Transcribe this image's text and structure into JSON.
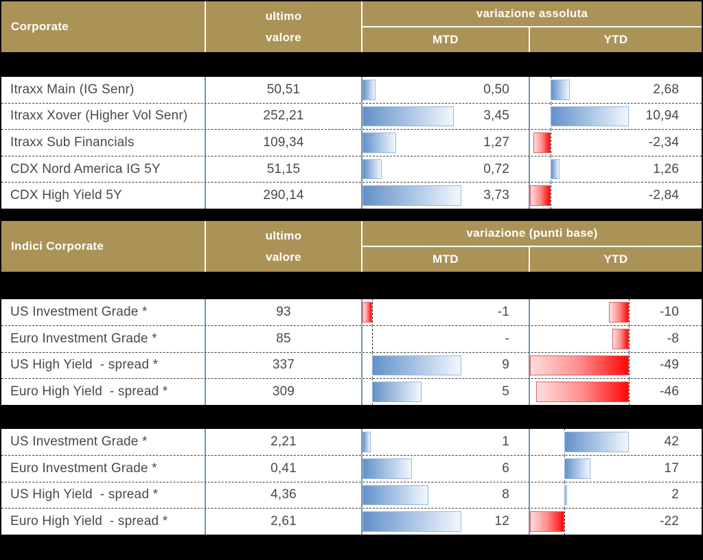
{
  "colors": {
    "background": "#000000",
    "header_bg": "#ab9357",
    "header_text": "#ffffff",
    "row_bg": "#ffffff",
    "row_text": "#484848",
    "column_divider": "#7096b2",
    "positive_bar_dark": "#6391c9",
    "positive_bar_light": "#f1f6fc",
    "negative_bar_dark": "#ff0707",
    "negative_bar_light": "#ffdede"
  },
  "chart_data": [
    {
      "type": "table",
      "title": "Corporate",
      "columns": {
        "value_line1": "ultimo",
        "value_line2": "valore",
        "variation": "variazione assoluta",
        "mtd": "MTD",
        "ytd": "YTD"
      },
      "rows": [
        {
          "label": "Itraxx Main (IG Senr)",
          "value": 50.51,
          "value_label": "50,51",
          "mtd": 0.5,
          "mtd_label": "0,50",
          "ytd": 2.68,
          "ytd_label": "2,68"
        },
        {
          "label": "Itraxx Xover (Higher Vol Senr)",
          "value": 252.21,
          "value_label": "252,21",
          "mtd": 3.45,
          "mtd_label": "3,45",
          "ytd": 10.94,
          "ytd_label": "10,94"
        },
        {
          "label": "Itraxx Sub Financials",
          "value": 109.34,
          "value_label": "109,34",
          "mtd": 1.27,
          "mtd_label": "1,27",
          "ytd": -2.34,
          "ytd_label": "-2,34"
        },
        {
          "label": "CDX Nord America IG 5Y",
          "value": 51.15,
          "value_label": "51,15",
          "mtd": 0.72,
          "mtd_label": "0,72",
          "ytd": 1.26,
          "ytd_label": "1,26"
        },
        {
          "label": "CDX High Yield 5Y",
          "value": 290.14,
          "value_label": "290,14",
          "mtd": 3.73,
          "mtd_label": "3,73",
          "ytd": -2.84,
          "ytd_label": "-2,84"
        }
      ]
    },
    {
      "type": "table",
      "title": "Indici Corporate",
      "columns": {
        "value_line1": "ultimo",
        "value_line2": "valore",
        "variation": "variazione (punti base)",
        "mtd": "MTD",
        "ytd": "YTD"
      },
      "rows": [
        {
          "label": "US Investment Grade *",
          "value": 93,
          "value_label": "93",
          "mtd": -1,
          "mtd_label": "-1",
          "ytd": -10,
          "ytd_label": "-10"
        },
        {
          "label": "Euro Investment Grade *",
          "value": 85,
          "value_label": "85",
          "mtd": null,
          "mtd_label": "-",
          "ytd": -8,
          "ytd_label": "-8"
        },
        {
          "label": "US High Yield  - spread *",
          "value": 337,
          "value_label": "337",
          "mtd": 9,
          "mtd_label": "9",
          "ytd": -49,
          "ytd_label": "-49"
        },
        {
          "label": "Euro High Yield  - spread *",
          "value": 309,
          "value_label": "309",
          "mtd": 5,
          "mtd_label": "5",
          "ytd": -46,
          "ytd_label": "-46"
        }
      ]
    },
    {
      "type": "table",
      "title": null,
      "columns": null,
      "rows": [
        {
          "label": "US Investment Grade *",
          "value": 2.21,
          "value_label": "2,21",
          "mtd": 1,
          "mtd_label": "1",
          "ytd": 42,
          "ytd_label": "42"
        },
        {
          "label": "Euro Investment Grade *",
          "value": 0.41,
          "value_label": "0,41",
          "mtd": 6,
          "mtd_label": "6",
          "ytd": 17,
          "ytd_label": "17"
        },
        {
          "label": "US High Yield  - spread *",
          "value": 4.36,
          "value_label": "4,36",
          "mtd": 8,
          "mtd_label": "8",
          "ytd": 2,
          "ytd_label": "2"
        },
        {
          "label": "Euro High Yield  - spread *",
          "value": 2.61,
          "value_label": "2,61",
          "mtd": 12,
          "mtd_label": "12",
          "ytd": -22,
          "ytd_label": "-22"
        }
      ]
    }
  ]
}
